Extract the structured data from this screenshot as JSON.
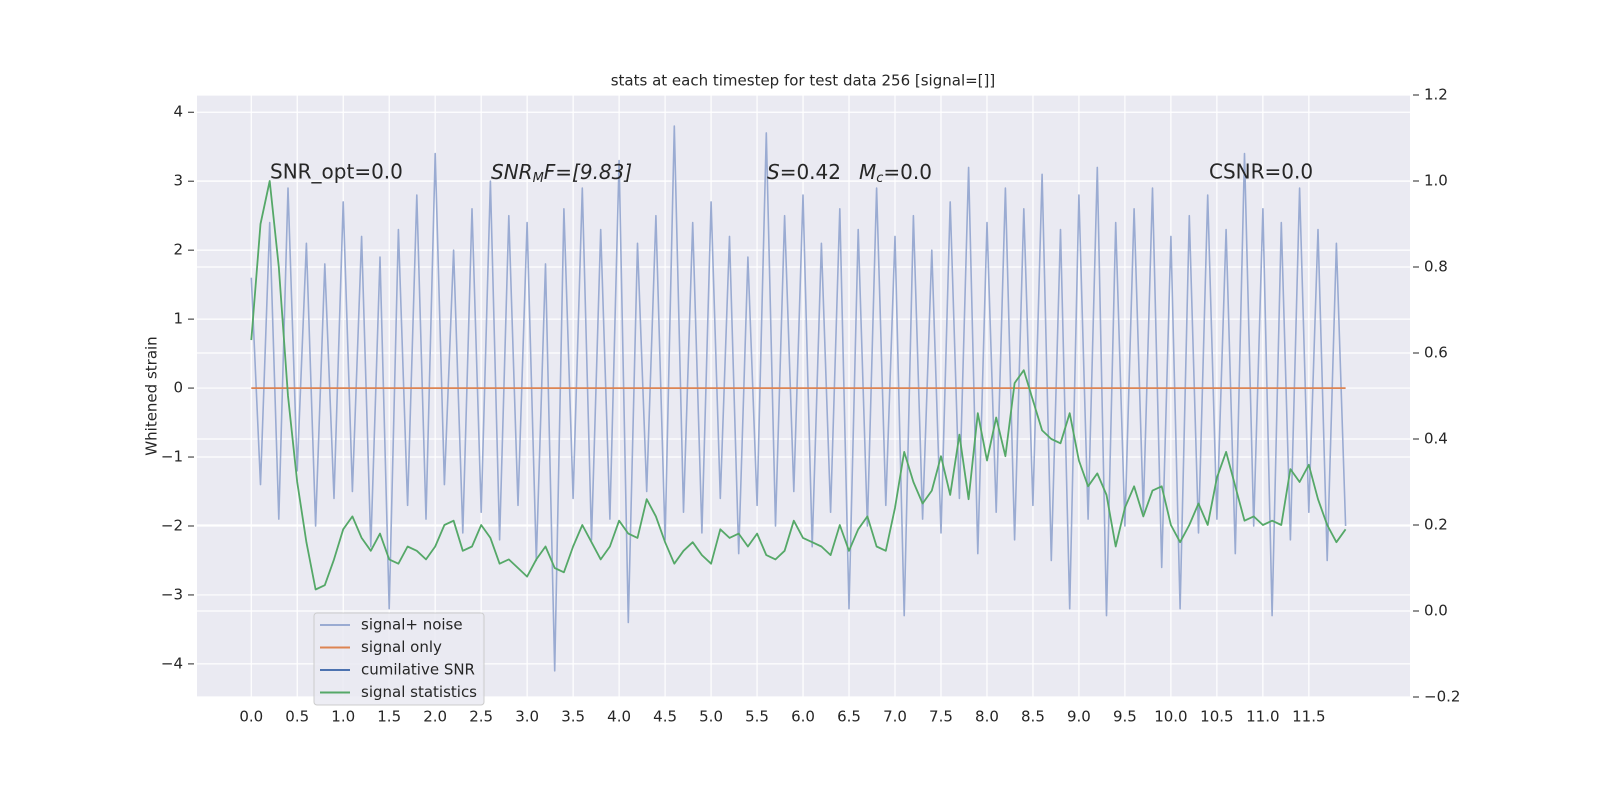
{
  "chart_data": {
    "type": "line",
    "title": "stats at each timestep for test data 256 [signal=[]]",
    "ylabel": "Whitened strain",
    "annotations": [
      "SNR_opt=0.0",
      [
        "SNR",
        "M",
        "F=[9.83]"
      ],
      [
        "S",
        "=0.42"
      ],
      [
        "M",
        "c",
        "=0.0"
      ],
      "CSNR=0.0"
    ],
    "x": [
      0,
      0.1,
      0.2,
      0.3,
      0.4,
      0.5,
      0.6,
      0.7,
      0.8,
      0.9,
      1,
      1.1,
      1.2,
      1.3,
      1.4,
      1.5,
      1.6,
      1.7,
      1.8,
      1.9,
      2,
      2.1,
      2.2,
      2.3,
      2.4,
      2.5,
      2.6,
      2.7,
      2.8,
      2.9,
      3,
      3.1,
      3.2,
      3.3,
      3.4,
      3.5,
      3.6,
      3.7,
      3.8,
      3.9,
      4,
      4.1,
      4.2,
      4.3,
      4.4,
      4.5,
      4.6,
      4.7,
      4.8,
      4.9,
      5,
      5.1,
      5.2,
      5.3,
      5.4,
      5.5,
      5.6,
      5.7,
      5.8,
      5.9,
      6,
      6.1,
      6.2,
      6.3,
      6.4,
      6.5,
      6.6,
      6.7,
      6.8,
      6.9,
      7,
      7.1,
      7.2,
      7.3,
      7.4,
      7.5,
      7.6,
      7.7,
      7.8,
      7.9,
      8,
      8.1,
      8.2,
      8.3,
      8.4,
      8.5,
      8.6,
      8.7,
      8.8,
      8.9,
      9,
      9.1,
      9.2,
      9.3,
      9.4,
      9.5,
      9.6,
      9.7,
      9.8,
      9.9,
      10,
      10.1,
      10.2,
      10.3,
      10.4,
      10.5,
      10.6,
      10.7,
      10.8,
      10.9,
      11,
      11.1,
      11.2,
      11.3,
      11.4,
      11.5,
      11.6,
      11.7,
      11.8,
      11.9
    ],
    "series": [
      {
        "name": "signal+ noise",
        "color": "#9aabd2",
        "values": [
          1.6,
          -1.4,
          2.4,
          -1.9,
          2.9,
          -1.2,
          2.1,
          -2.0,
          1.8,
          -1.6,
          2.7,
          -1.5,
          2.2,
          -2.3,
          1.9,
          -3.2,
          2.3,
          -1.7,
          2.8,
          -1.9,
          3.4,
          -1.4,
          2.0,
          -2.1,
          2.6,
          -1.8,
          3.0,
          -2.2,
          2.5,
          -1.7,
          2.4,
          -2.5,
          1.8,
          -4.1,
          2.6,
          -1.6,
          2.9,
          -2.2,
          2.3,
          -1.9,
          3.3,
          -3.4,
          2.1,
          -1.5,
          2.5,
          -2.2,
          3.8,
          -1.8,
          2.4,
          -2.1,
          2.7,
          -1.6,
          2.2,
          -2.4,
          1.9,
          -1.7,
          3.7,
          -2.0,
          2.5,
          -1.5,
          2.8,
          -2.3,
          2.1,
          -1.8,
          2.6,
          -3.2,
          2.3,
          -2.0,
          2.9,
          -1.7,
          2.2,
          -3.3,
          2.5,
          -1.9,
          2.0,
          -2.1,
          2.7,
          -1.6,
          3.2,
          -2.4,
          2.4,
          -1.8,
          2.9,
          -2.2,
          2.6,
          -1.7,
          3.1,
          -2.5,
          2.3,
          -3.2,
          2.8,
          -1.9,
          3.2,
          -3.3,
          2.4,
          -2.0,
          2.6,
          -1.8,
          2.9,
          -2.6,
          2.2,
          -3.2,
          2.5,
          -2.1,
          2.8,
          -1.9,
          2.3,
          -2.4,
          3.4,
          -2.0,
          2.6,
          -3.3,
          2.4,
          -2.2,
          2.9,
          -1.8,
          2.3,
          -2.5,
          2.1,
          -2.0
        ]
      },
      {
        "name": "signal only",
        "color": "#dd8452",
        "values": [
          0,
          0,
          0,
          0,
          0,
          0,
          0,
          0,
          0,
          0,
          0,
          0,
          0,
          0,
          0,
          0,
          0,
          0,
          0,
          0,
          0,
          0,
          0,
          0,
          0,
          0,
          0,
          0,
          0,
          0,
          0,
          0,
          0,
          0,
          0,
          0,
          0,
          0,
          0,
          0,
          0,
          0,
          0,
          0,
          0,
          0,
          0,
          0,
          0,
          0,
          0,
          0,
          0,
          0,
          0,
          0,
          0,
          0,
          0,
          0,
          0,
          0,
          0,
          0,
          0,
          0,
          0,
          0,
          0,
          0,
          0,
          0,
          0,
          0,
          0,
          0,
          0,
          0,
          0,
          0,
          0,
          0,
          0,
          0,
          0,
          0,
          0,
          0,
          0,
          0,
          0,
          0,
          0,
          0,
          0,
          0,
          0,
          0,
          0,
          0,
          0,
          0,
          0,
          0,
          0,
          0,
          0,
          0,
          0,
          0,
          0,
          0,
          0,
          0,
          0,
          0,
          0,
          0,
          0,
          0
        ]
      },
      {
        "name": "cumilative SNR",
        "color": "#4c72b0",
        "values": [
          null,
          null,
          null,
          null,
          null,
          null,
          null,
          null,
          null,
          null,
          null,
          null,
          null,
          null,
          null,
          null,
          null,
          null,
          null,
          null,
          null,
          null,
          null,
          null,
          null,
          null,
          null,
          null,
          null,
          null,
          null,
          null,
          null,
          null,
          null,
          null,
          null,
          null,
          null,
          null,
          null,
          null,
          null,
          null,
          null,
          null,
          null,
          null,
          null,
          null,
          null,
          null,
          null,
          null,
          null,
          null,
          null,
          null,
          null,
          null,
          null,
          null,
          null,
          null,
          null,
          null,
          null,
          null,
          null,
          null,
          null,
          null,
          null,
          null,
          null,
          null,
          null,
          null,
          null,
          null,
          null,
          null,
          null,
          null,
          null,
          null,
          null,
          null,
          null,
          null,
          null,
          null,
          null,
          null,
          null,
          null,
          null,
          null,
          null,
          null,
          null,
          null,
          null,
          null,
          null,
          null,
          null,
          null,
          null,
          null,
          null,
          null,
          null,
          null,
          null,
          null,
          null,
          null,
          null,
          null
        ]
      },
      {
        "name": "signal statistics",
        "color": "#55a868",
        "axis": "y2",
        "values": [
          0.63,
          0.9,
          1.0,
          0.8,
          0.5,
          0.3,
          0.16,
          0.05,
          0.06,
          0.12,
          0.19,
          0.22,
          0.17,
          0.14,
          0.18,
          0.12,
          0.11,
          0.15,
          0.14,
          0.12,
          0.15,
          0.2,
          0.21,
          0.14,
          0.15,
          0.2,
          0.17,
          0.11,
          0.12,
          0.1,
          0.08,
          0.12,
          0.15,
          0.1,
          0.09,
          0.15,
          0.2,
          0.16,
          0.12,
          0.15,
          0.21,
          0.18,
          0.17,
          0.26,
          0.22,
          0.16,
          0.11,
          0.14,
          0.16,
          0.13,
          0.11,
          0.19,
          0.17,
          0.18,
          0.15,
          0.18,
          0.13,
          0.12,
          0.14,
          0.21,
          0.17,
          0.16,
          0.15,
          0.13,
          0.2,
          0.14,
          0.19,
          0.22,
          0.15,
          0.14,
          0.24,
          0.37,
          0.3,
          0.25,
          0.28,
          0.36,
          0.27,
          0.41,
          0.26,
          0.46,
          0.35,
          0.45,
          0.36,
          0.53,
          0.56,
          0.49,
          0.42,
          0.4,
          0.39,
          0.46,
          0.35,
          0.29,
          0.32,
          0.27,
          0.15,
          0.24,
          0.29,
          0.22,
          0.28,
          0.29,
          0.2,
          0.16,
          0.2,
          0.25,
          0.2,
          0.31,
          0.37,
          0.29,
          0.21,
          0.22,
          0.2,
          0.21,
          0.2,
          0.33,
          0.3,
          0.34,
          0.26,
          0.2,
          0.16,
          0.19
        ]
      }
    ],
    "xlim": [
      -0.59,
      12.6
    ],
    "ylim": [
      -4.48,
      4.25
    ],
    "y2lim": [
      -0.2,
      1.2
    ],
    "xticks": [
      {
        "value": 0,
        "label": "0.0"
      },
      0.5,
      {
        "value": 1,
        "label": "1.0"
      },
      1.5,
      {
        "value": 2,
        "label": "2.0"
      },
      2.5,
      {
        "value": 3,
        "label": "3.0"
      },
      3.5,
      {
        "value": 4,
        "label": "4.0"
      },
      4.5,
      {
        "value": 5,
        "label": "5.0"
      },
      5.5,
      {
        "value": 6,
        "label": "6.0"
      },
      6.5,
      {
        "value": 7,
        "label": "7.0"
      },
      7.5,
      {
        "value": 8,
        "label": "8.0"
      },
      8.5,
      {
        "value": 9,
        "label": "9.0"
      },
      9.5,
      {
        "value": 10,
        "label": "10.0"
      },
      10.5,
      {
        "value": 11,
        "label": "11.0"
      },
      11.5
    ],
    "yticks": [
      {
        "value": -4,
        "label": "−4"
      },
      {
        "value": -3,
        "label": "−3"
      },
      {
        "value": -2,
        "label": "−2"
      },
      {
        "value": -1,
        "label": "−1"
      },
      0,
      1,
      2,
      3,
      4
    ],
    "y2ticks": [
      {
        "value": -0.2,
        "label": "−0.2"
      },
      {
        "value": 0,
        "label": "0.0"
      },
      0.2,
      0.4,
      0.6,
      0.8,
      {
        "value": 1,
        "label": "1.0"
      },
      1.2
    ],
    "grid": true,
    "legend": "lower left"
  }
}
